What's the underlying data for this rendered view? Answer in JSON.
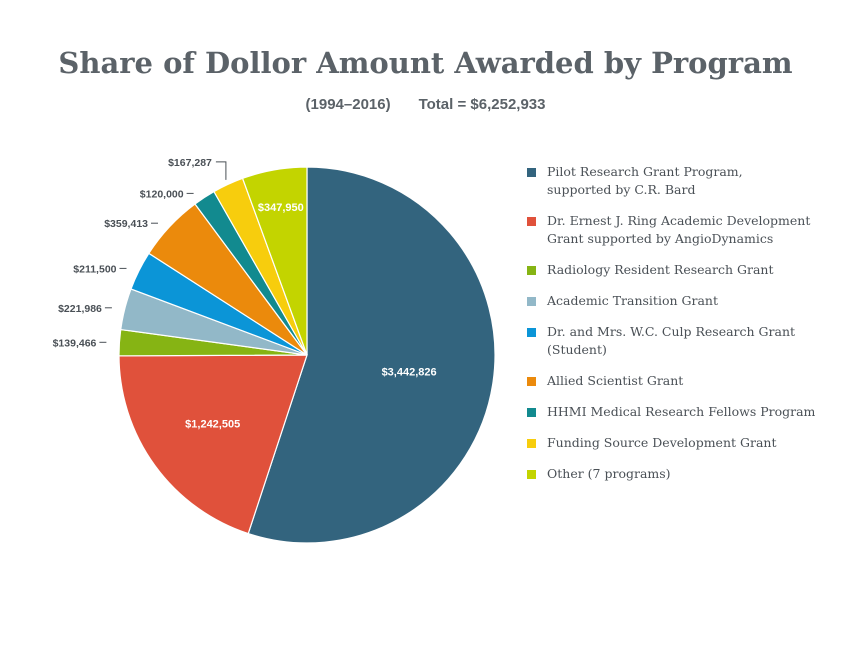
{
  "chart_data": {
    "type": "pie",
    "title": "Share of Dollor Amount Awarded by Program",
    "subtitle_years": "(1994–2016)",
    "subtitle_total": "Total = $6,252,933",
    "slices": [
      {
        "name": "Pilot Research Grant Program, supported by C.R. Bard",
        "legend_lines": [
          "Pilot Research Grant Program,",
          "supported by C.R. Bard"
        ],
        "value": 3442826,
        "label": "$3,442,826",
        "color": "#33647e",
        "label_placement": "inside"
      },
      {
        "name": "Dr. Ernest J. Ring Academic Development Grant supported by AngioDynamics",
        "legend_lines": [
          "Dr. Ernest J. Ring Academic Development",
          "Grant supported by AngioDynamics"
        ],
        "value": 1242505,
        "label": "$1,242,505",
        "color": "#e0513b",
        "label_placement": "inside"
      },
      {
        "name": "Radiology Resident Research Grant",
        "legend_lines": [
          "Radiology Resident Research Grant"
        ],
        "value": 139466,
        "label": "$139,466",
        "color": "#86b414",
        "label_placement": "outside"
      },
      {
        "name": "Academic Transition Grant",
        "legend_lines": [
          "Academic Transition Grant"
        ],
        "value": 221986,
        "label": "$221,986",
        "color": "#92b8c8",
        "label_placement": "outside"
      },
      {
        "name": "Dr. and Mrs. W.C. Culp Research Grant (Student)",
        "legend_lines": [
          "Dr. and Mrs. W.C. Culp Research Grant",
          "(Student)"
        ],
        "value": 211500,
        "label": "$211,500",
        "color": "#0b95d7",
        "label_placement": "outside"
      },
      {
        "name": "Allied Scientist Grant",
        "legend_lines": [
          "Allied Scientist Grant"
        ],
        "value": 359413,
        "label": "$359,413",
        "color": "#eb8a0c",
        "label_placement": "outside"
      },
      {
        "name": "HHMI Medical Research Fellows Program",
        "legend_lines": [
          "HHMI Medical Research Fellows Program"
        ],
        "value": 120000,
        "label": "$120,000",
        "color": "#128a8f",
        "label_placement": "outside"
      },
      {
        "name": "Funding Source Development Grant",
        "legend_lines": [
          "Funding Source Development Grant"
        ],
        "value": 167287,
        "label": "$167,287",
        "color": "#f7cd0d",
        "label_placement": "outside"
      },
      {
        "name": "Other (7 programs)",
        "legend_lines": [
          "Other (7 programs)"
        ],
        "value": 347950,
        "label": "$347,950",
        "color": "#c3d400",
        "label_placement": "inside"
      }
    ],
    "legend_position": "right"
  }
}
